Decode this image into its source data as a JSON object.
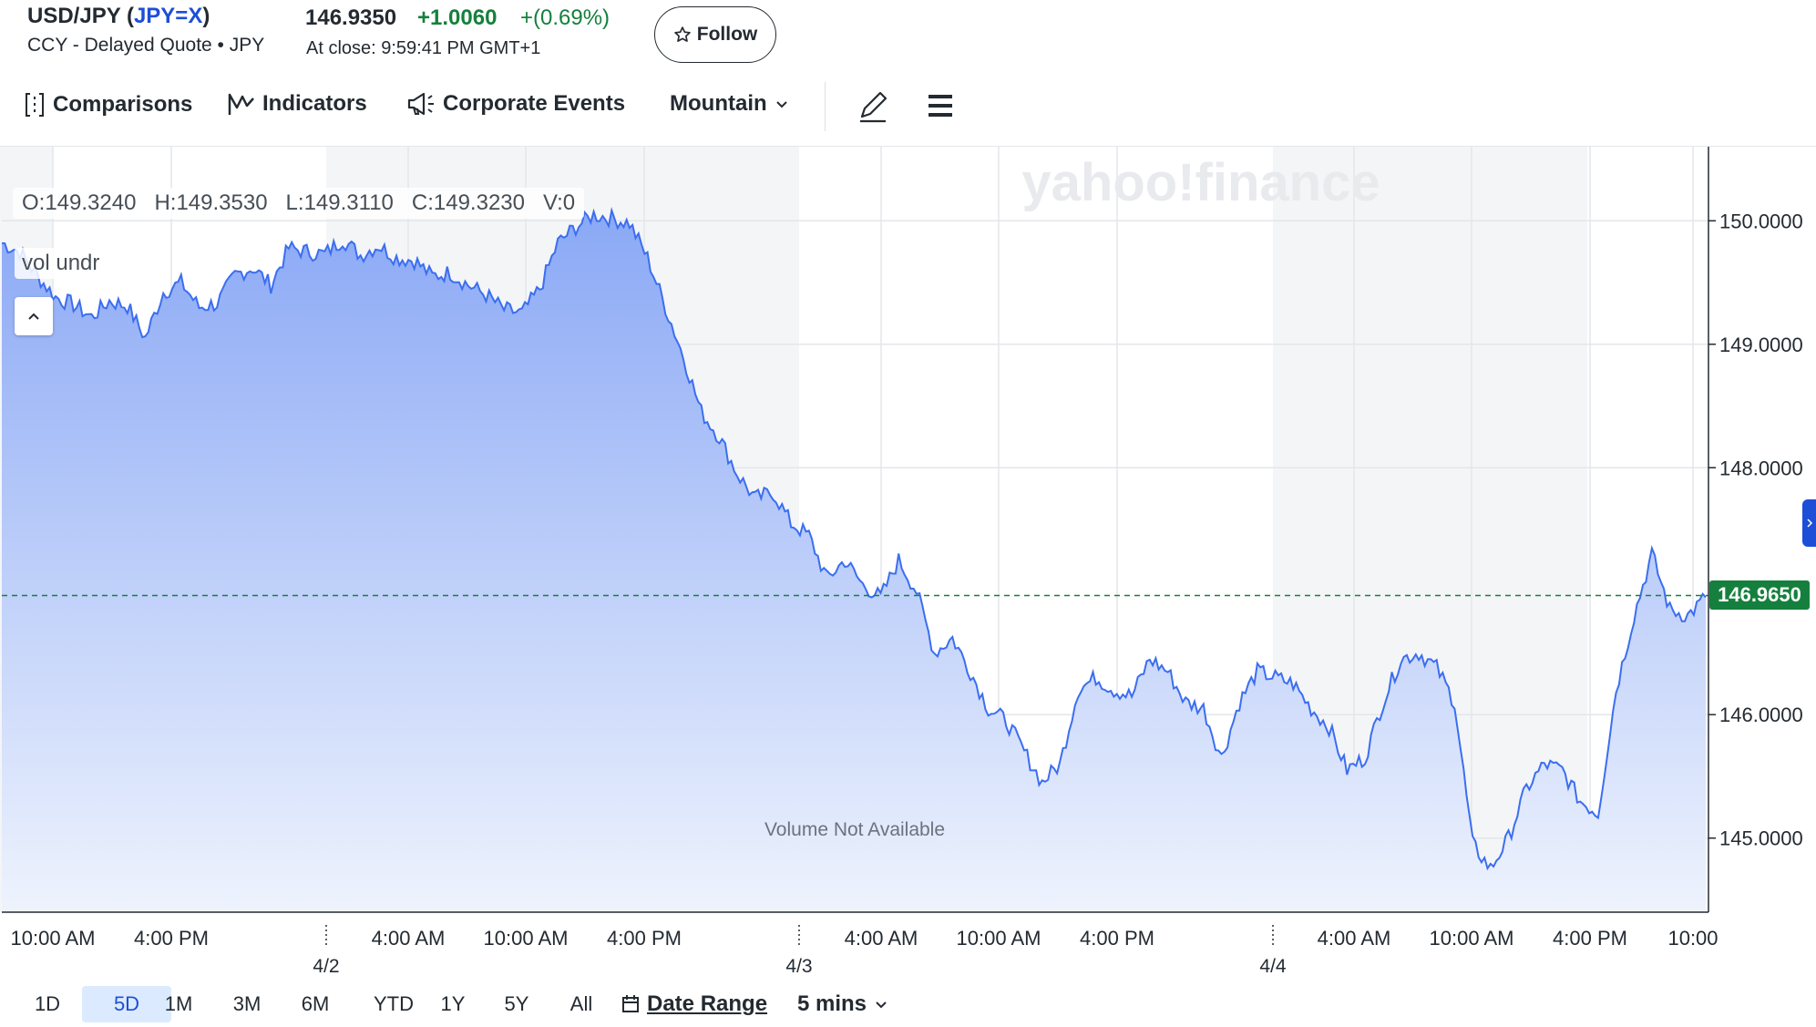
{
  "header": {
    "ticker_prefix": "USD/JPY (",
    "symbol": "JPY=X",
    "ticker_suffix": ")",
    "subtitle": "CCY - Delayed Quote • JPY",
    "price": "146.9350",
    "change": "+1.0060",
    "change_pct": "+(0.69%)",
    "close_time": "At close: 9:59:41 PM GMT+1",
    "follow_label": "Follow"
  },
  "toolbar": {
    "comparisons": "Comparisons",
    "indicators": "Indicators",
    "corporate_events": "Corporate Events",
    "chart_type": "Mountain"
  },
  "overlay": {
    "ohlc": "O:149.3240   H:149.3530   L:149.3110   C:149.3230   V:0",
    "vol_label": "vol undr",
    "volume_note": "Volume Not Available",
    "watermark": "yahoo!finance"
  },
  "ranges": [
    "1D",
    "5D",
    "1M",
    "3M",
    "6M",
    "YTD",
    "1Y",
    "5Y",
    "All"
  ],
  "active_range": "5D",
  "date_range_label": "Date Range",
  "interval_label": "5 mins",
  "colors": {
    "line": "#3b6ef0",
    "fill_top": "#8aa8f5",
    "fill_bottom": "#eef3fd",
    "positive": "#15803d",
    "last_line": "#15803d"
  },
  "chart_data": {
    "type": "area",
    "title": "",
    "xlabel": "",
    "ylabel": "",
    "ylim": [
      144.4,
      150.6
    ],
    "y_ticks": [
      "150.0000",
      "149.0000",
      "148.0000",
      "146.0000",
      "145.0000"
    ],
    "y_tick_values": [
      150.0,
      149.0,
      148.0,
      146.0,
      145.0
    ],
    "x_tick_labels": [
      "10:00 AM",
      "4:00 PM",
      "4:00 AM",
      "10:00 AM",
      "4:00 PM",
      "4:00 AM",
      "10:00 AM",
      "4:00 PM",
      "4:00 AM",
      "10:00 AM",
      "4:00 PM",
      "10:00"
    ],
    "date_labels": [
      "4/2",
      "4/3",
      "4/4"
    ],
    "last_value": "146.9650",
    "last_value_num": 146.965,
    "series": [
      {
        "values": [
          149.82,
          149.75,
          149.55,
          149.38,
          149.32,
          149.22,
          149.35,
          149.31,
          149.05,
          149.42,
          149.5,
          149.3,
          149.33,
          149.56,
          149.62,
          149.48,
          149.78,
          149.75,
          149.73,
          149.85,
          149.72,
          149.8,
          149.7,
          149.68,
          149.55,
          149.58,
          149.48,
          149.4,
          149.28,
          149.25,
          149.45,
          149.82,
          149.95,
          150.05,
          150.02,
          149.98,
          149.7,
          149.3,
          148.9,
          148.45,
          148.25,
          147.95,
          147.75,
          147.8,
          147.55,
          147.45,
          147.1,
          147.25,
          147.05,
          146.95,
          147.25,
          147.0,
          146.5,
          146.62,
          146.35,
          146.05,
          145.95,
          145.7,
          145.45,
          145.6,
          146.2,
          146.3,
          146.2,
          146.15,
          146.45,
          146.35,
          146.1,
          146.05,
          145.65,
          146.1,
          146.35,
          146.3,
          146.25,
          146.05,
          145.9,
          145.55,
          145.65,
          146.1,
          146.45,
          146.5,
          146.38,
          146.1,
          144.95,
          144.75,
          145.0,
          145.4,
          145.6,
          145.55,
          145.3,
          145.2,
          146.2,
          146.8,
          147.3,
          146.85,
          146.8,
          146.95
        ]
      }
    ]
  }
}
